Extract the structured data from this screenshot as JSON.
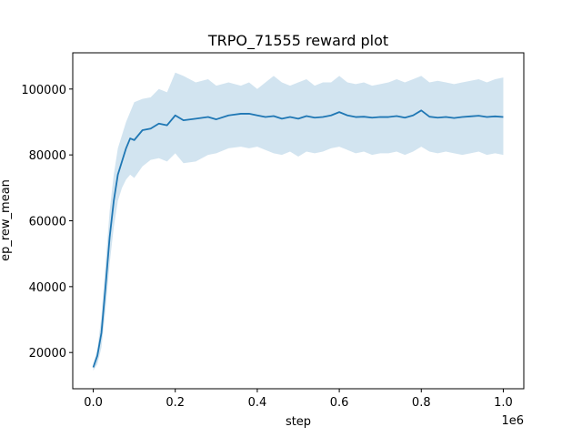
{
  "chart_data": {
    "type": "line",
    "title": "TRPO_71555 reward plot",
    "xlabel": "step",
    "ylabel": "ep_rew_mean",
    "x_multiplier_label": "1e6",
    "xlim": [
      -0.05,
      1.05
    ],
    "ylim": [
      9000,
      111000
    ],
    "xticks": [
      0.0,
      0.2,
      0.4,
      0.6,
      0.8,
      1.0
    ],
    "xtick_labels": [
      "0.0",
      "0.2",
      "0.4",
      "0.6",
      "0.8",
      "1.0"
    ],
    "yticks": [
      20000,
      40000,
      60000,
      80000,
      100000
    ],
    "ytick_labels": [
      "20000",
      "40000",
      "60000",
      "80000",
      "100000"
    ],
    "grid": false,
    "colors": {
      "line": "#1f77b4",
      "band": "#1f77b4"
    },
    "series": [
      {
        "type": "line",
        "x": [
          0.0,
          0.01,
          0.02,
          0.03,
          0.04,
          0.05,
          0.06,
          0.07,
          0.08,
          0.09,
          0.1,
          0.12,
          0.14,
          0.16,
          0.18,
          0.2,
          0.22,
          0.25,
          0.28,
          0.3,
          0.33,
          0.36,
          0.38,
          0.4,
          0.42,
          0.44,
          0.46,
          0.48,
          0.5,
          0.52,
          0.54,
          0.56,
          0.58,
          0.6,
          0.62,
          0.64,
          0.66,
          0.68,
          0.7,
          0.72,
          0.74,
          0.76,
          0.78,
          0.8,
          0.82,
          0.84,
          0.86,
          0.88,
          0.9,
          0.92,
          0.94,
          0.96,
          0.98,
          1.0
        ],
        "y": [
          15500,
          19000,
          26000,
          40000,
          55000,
          66000,
          74000,
          78000,
          82000,
          85000,
          84500,
          87500,
          88000,
          89500,
          89000,
          92000,
          90500,
          91000,
          91500,
          90800,
          92000,
          92500,
          92500,
          92000,
          91500,
          91800,
          91000,
          91500,
          91000,
          91800,
          91300,
          91500,
          92000,
          93000,
          92000,
          91500,
          91600,
          91300,
          91500,
          91500,
          91800,
          91300,
          92000,
          93500,
          91600,
          91300,
          91500,
          91200,
          91500,
          91700,
          91900,
          91500,
          91700,
          91500
        ]
      },
      {
        "type": "band",
        "x": [
          0.0,
          0.01,
          0.02,
          0.03,
          0.04,
          0.05,
          0.06,
          0.07,
          0.08,
          0.09,
          0.1,
          0.12,
          0.14,
          0.16,
          0.18,
          0.2,
          0.22,
          0.25,
          0.28,
          0.3,
          0.33,
          0.36,
          0.38,
          0.4,
          0.42,
          0.44,
          0.46,
          0.48,
          0.5,
          0.52,
          0.54,
          0.56,
          0.58,
          0.6,
          0.62,
          0.64,
          0.66,
          0.68,
          0.7,
          0.72,
          0.74,
          0.76,
          0.78,
          0.8,
          0.82,
          0.84,
          0.86,
          0.88,
          0.9,
          0.92,
          0.94,
          0.96,
          0.98,
          1.0
        ],
        "upper": [
          16500,
          21000,
          31000,
          47000,
          63000,
          74000,
          82000,
          86000,
          90000,
          93000,
          96000,
          97000,
          97500,
          100000,
          99000,
          105000,
          104000,
          102000,
          103000,
          101000,
          102000,
          101000,
          102000,
          100000,
          102000,
          104000,
          102000,
          101000,
          102000,
          103000,
          101000,
          102000,
          102000,
          104000,
          102000,
          101500,
          102000,
          101000,
          101500,
          102000,
          103000,
          102000,
          103000,
          104000,
          102000,
          102500,
          102000,
          101500,
          102000,
          102500,
          103000,
          102000,
          103000,
          103500
        ],
        "lower": [
          14500,
          16500,
          21500,
          33000,
          47000,
          58000,
          66000,
          70000,
          72500,
          74000,
          73000,
          76500,
          78500,
          79000,
          78000,
          80500,
          77500,
          78000,
          80000,
          80500,
          82000,
          82500,
          82000,
          82500,
          81500,
          80500,
          80000,
          81000,
          79500,
          81000,
          80500,
          81000,
          82000,
          82500,
          81500,
          80500,
          81000,
          80000,
          80500,
          80500,
          81000,
          80000,
          81000,
          82500,
          81000,
          80500,
          81000,
          80500,
          80000,
          80500,
          81000,
          80000,
          80500,
          80000
        ]
      }
    ]
  }
}
